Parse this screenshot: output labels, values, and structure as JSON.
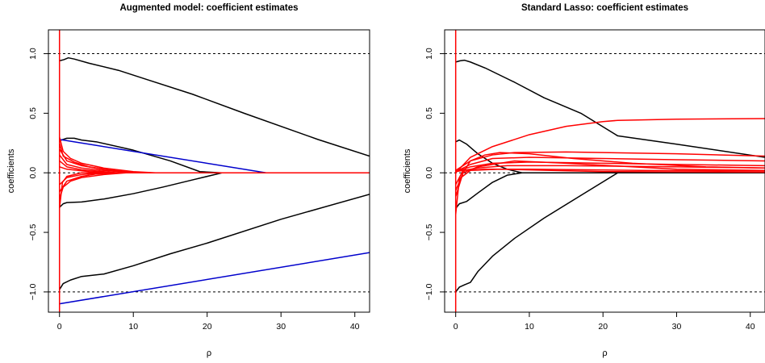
{
  "chart_data": [
    {
      "type": "line",
      "title": "Augmented model: coefficient estimates",
      "xlabel": "ρ",
      "ylabel": "coefficients",
      "xlim": [
        -1.5,
        42
      ],
      "ylim": [
        -1.17,
        1.2
      ],
      "xticks": [
        0,
        10,
        20,
        30,
        40
      ],
      "yticks": [
        -1.0,
        -0.5,
        0.0,
        0.5,
        1.0
      ],
      "ytick_labels": [
        "−1.0",
        "−0.5",
        "0.0",
        "0.5",
        "1.0"
      ],
      "reference_lines": [
        1.0,
        0.0,
        -1.0
      ],
      "colors": {
        "black": "#000000",
        "red": "#ff0000",
        "blue": "#0000cc"
      },
      "series": [
        {
          "color": "black",
          "points": [
            [
              0,
              0.94
            ],
            [
              0.6,
              0.95
            ],
            [
              1.2,
              0.965
            ],
            [
              2,
              0.955
            ],
            [
              4,
              0.92
            ],
            [
              8,
              0.86
            ],
            [
              12,
              0.78
            ],
            [
              18,
              0.66
            ],
            [
              25,
              0.5
            ],
            [
              35,
              0.28
            ],
            [
              42,
              0.14
            ]
          ]
        },
        {
          "color": "black",
          "points": [
            [
              0,
              0.27
            ],
            [
              1,
              0.29
            ],
            [
              2,
              0.29
            ],
            [
              3,
              0.275
            ],
            [
              5,
              0.26
            ],
            [
              10,
              0.19
            ],
            [
              15,
              0.1
            ],
            [
              19,
              0.01
            ],
            [
              22,
              0.0
            ],
            [
              42,
              0.0
            ]
          ]
        },
        {
          "color": "black",
          "points": [
            [
              0,
              -0.29
            ],
            [
              0.5,
              -0.26
            ],
            [
              1,
              -0.25
            ],
            [
              3,
              -0.245
            ],
            [
              6,
              -0.22
            ],
            [
              10,
              -0.175
            ],
            [
              14,
              -0.12
            ],
            [
              18,
              -0.06
            ],
            [
              22,
              0.0
            ],
            [
              42,
              0.0
            ]
          ]
        },
        {
          "color": "black",
          "points": [
            [
              0,
              -0.98
            ],
            [
              0.5,
              -0.93
            ],
            [
              1.5,
              -0.9
            ],
            [
              3,
              -0.87
            ],
            [
              6,
              -0.85
            ],
            [
              10,
              -0.78
            ],
            [
              15,
              -0.68
            ],
            [
              20,
              -0.59
            ],
            [
              30,
              -0.39
            ],
            [
              42,
              -0.18
            ]
          ]
        },
        {
          "color": "blue",
          "points": [
            [
              0,
              0.28
            ],
            [
              28,
              0.0
            ],
            [
              42,
              0.0
            ]
          ]
        },
        {
          "color": "blue",
          "points": [
            [
              0,
              -1.1
            ],
            [
              42,
              -0.67
            ]
          ]
        },
        {
          "color": "red",
          "points": [
            [
              0,
              0.3
            ],
            [
              0.5,
              0.18
            ],
            [
              1.5,
              0.12
            ],
            [
              3,
              0.08
            ],
            [
              6,
              0.04
            ],
            [
              10,
              0.01
            ],
            [
              13,
              0.0
            ],
            [
              42,
              0.0
            ]
          ]
        },
        {
          "color": "red",
          "points": [
            [
              0,
              0.25
            ],
            [
              0.5,
              0.14
            ],
            [
              2,
              0.09
            ],
            [
              4,
              0.05
            ],
            [
              7,
              0.02
            ],
            [
              11,
              0.0
            ],
            [
              42,
              0.0
            ]
          ]
        },
        {
          "color": "red",
          "points": [
            [
              0,
              0.2
            ],
            [
              1,
              0.1
            ],
            [
              3,
              0.06
            ],
            [
              6,
              0.03
            ],
            [
              9,
              0.01
            ],
            [
              12,
              0.0
            ],
            [
              42,
              0.0
            ]
          ]
        },
        {
          "color": "red",
          "points": [
            [
              0,
              0.15
            ],
            [
              1,
              0.07
            ],
            [
              3,
              0.04
            ],
            [
              6,
              0.02
            ],
            [
              10,
              0.0
            ],
            [
              42,
              0.0
            ]
          ]
        },
        {
          "color": "red",
          "points": [
            [
              0,
              0.1
            ],
            [
              1,
              0.05
            ],
            [
              3,
              0.025
            ],
            [
              8,
              0.0
            ],
            [
              42,
              0.0
            ]
          ]
        },
        {
          "color": "red",
          "points": [
            [
              0,
              -0.22
            ],
            [
              0.5,
              -0.12
            ],
            [
              1.5,
              -0.07
            ],
            [
              3,
              -0.04
            ],
            [
              6,
              -0.015
            ],
            [
              9,
              0.0
            ],
            [
              42,
              0.0
            ]
          ]
        },
        {
          "color": "red",
          "points": [
            [
              0,
              -0.16
            ],
            [
              1,
              -0.07
            ],
            [
              3,
              -0.03
            ],
            [
              5,
              -0.01
            ],
            [
              8,
              0.0
            ],
            [
              42,
              0.0
            ]
          ]
        },
        {
          "color": "red",
          "points": [
            [
              0,
              -0.1
            ],
            [
              1,
              -0.04
            ],
            [
              3,
              -0.015
            ],
            [
              6,
              0.0
            ],
            [
              42,
              0.0
            ]
          ]
        },
        {
          "color": "red",
          "points": [
            [
              0,
              -0.3
            ],
            [
              0.4,
              -0.08
            ],
            [
              1,
              -0.03
            ],
            [
              3,
              0.0
            ],
            [
              42,
              0.0
            ]
          ]
        },
        {
          "color": "red",
          "points": [
            [
              0,
              0.05
            ],
            [
              1,
              0.03
            ],
            [
              4,
              0.01
            ],
            [
              7,
              0.0
            ],
            [
              42,
              0.0
            ]
          ]
        },
        {
          "color": "red",
          "points": [
            [
              0,
              -1.17
            ],
            [
              0,
              1.2
            ]
          ]
        }
      ]
    },
    {
      "type": "line",
      "title": "Standard Lasso: coefficient estimates",
      "xlabel": "ρ",
      "ylabel": "coefficients",
      "xlim": [
        -1.5,
        42
      ],
      "ylim": [
        -1.17,
        1.2
      ],
      "xticks": [
        0,
        10,
        20,
        30,
        40
      ],
      "yticks": [
        -1.0,
        -0.5,
        0.0,
        0.5,
        1.0
      ],
      "ytick_labels": [
        "−1.0",
        "−0.5",
        "0.0",
        "0.5",
        "1.0"
      ],
      "reference_lines": [
        1.0,
        0.0,
        -1.0
      ],
      "colors": {
        "black": "#000000",
        "red": "#ff0000"
      },
      "series": [
        {
          "color": "black",
          "points": [
            [
              0,
              0.93
            ],
            [
              0.6,
              0.94
            ],
            [
              1.2,
              0.945
            ],
            [
              2,
              0.93
            ],
            [
              4,
              0.88
            ],
            [
              8,
              0.76
            ],
            [
              12,
              0.63
            ],
            [
              17,
              0.5
            ],
            [
              22,
              0.31
            ],
            [
              30,
              0.24
            ],
            [
              42,
              0.13
            ]
          ]
        },
        {
          "color": "black",
          "points": [
            [
              0,
              0.26
            ],
            [
              0.5,
              0.275
            ],
            [
              1.5,
              0.24
            ],
            [
              3,
              0.16
            ],
            [
              5,
              0.08
            ],
            [
              7,
              0.03
            ],
            [
              9,
              0.0
            ],
            [
              42,
              0.0
            ]
          ]
        },
        {
          "color": "black",
          "points": [
            [
              0,
              -0.3
            ],
            [
              0.5,
              -0.26
            ],
            [
              1.5,
              -0.24
            ],
            [
              3,
              -0.17
            ],
            [
              5,
              -0.08
            ],
            [
              7,
              -0.02
            ],
            [
              9,
              0.0
            ],
            [
              42,
              0.0
            ]
          ]
        },
        {
          "color": "black",
          "points": [
            [
              0,
              -1.0
            ],
            [
              0.5,
              -0.96
            ],
            [
              1.2,
              -0.94
            ],
            [
              2,
              -0.92
            ],
            [
              3,
              -0.83
            ],
            [
              5,
              -0.7
            ],
            [
              8,
              -0.55
            ],
            [
              12,
              -0.38
            ],
            [
              17,
              -0.19
            ],
            [
              22,
              0.0
            ],
            [
              42,
              0.0
            ]
          ]
        },
        {
          "color": "red",
          "points": [
            [
              0,
              0.0
            ],
            [
              2,
              0.13
            ],
            [
              5,
              0.22
            ],
            [
              10,
              0.32
            ],
            [
              15,
              0.39
            ],
            [
              20,
              0.43
            ],
            [
              22,
              0.44
            ],
            [
              30,
              0.45
            ],
            [
              42,
              0.455
            ]
          ]
        },
        {
          "color": "red",
          "points": [
            [
              0,
              0.02
            ],
            [
              2,
              0.1
            ],
            [
              5,
              0.15
            ],
            [
              8,
              0.17
            ],
            [
              15,
              0.175
            ],
            [
              30,
              0.16
            ],
            [
              42,
              0.14
            ]
          ]
        },
        {
          "color": "red",
          "points": [
            [
              0,
              0.01
            ],
            [
              2,
              0.07
            ],
            [
              5,
              0.12
            ],
            [
              10,
              0.13
            ],
            [
              20,
              0.12
            ],
            [
              30,
              0.11
            ],
            [
              42,
              0.1
            ]
          ]
        },
        {
          "color": "red",
          "points": [
            [
              0,
              0.01
            ],
            [
              2,
              0.05
            ],
            [
              5,
              0.08
            ],
            [
              10,
              0.09
            ],
            [
              20,
              0.08
            ],
            [
              30,
              0.07
            ],
            [
              42,
              0.06
            ]
          ]
        },
        {
          "color": "red",
          "points": [
            [
              0,
              0.01
            ],
            [
              3,
              0.04
            ],
            [
              7,
              0.06
            ],
            [
              15,
              0.06
            ],
            [
              30,
              0.05
            ],
            [
              42,
              0.04
            ]
          ]
        },
        {
          "color": "red",
          "points": [
            [
              0,
              -0.1
            ],
            [
              1,
              0.02
            ],
            [
              4,
              0.03
            ],
            [
              10,
              0.03
            ],
            [
              25,
              0.02
            ],
            [
              42,
              0.015
            ]
          ]
        },
        {
          "color": "red",
          "points": [
            [
              0,
              -0.2
            ],
            [
              1,
              0.0
            ],
            [
              2,
              0.1
            ],
            [
              4,
              0.15
            ],
            [
              6,
              0.17
            ],
            [
              10,
              0.16
            ],
            [
              16,
              0.12
            ],
            [
              24,
              0.08
            ],
            [
              34,
              0.05
            ],
            [
              42,
              0.04
            ]
          ]
        },
        {
          "color": "red",
          "points": [
            [
              0,
              -0.15
            ],
            [
              1,
              0.0
            ],
            [
              3,
              0.05
            ],
            [
              8,
              0.1
            ],
            [
              15,
              0.08
            ],
            [
              30,
              0.03
            ],
            [
              42,
              0.02
            ]
          ]
        },
        {
          "color": "red",
          "points": [
            [
              0,
              -0.35
            ],
            [
              0.5,
              -0.05
            ],
            [
              2,
              0.02
            ],
            [
              6,
              0.03
            ],
            [
              20,
              0.01
            ],
            [
              42,
              0.005
            ]
          ]
        },
        {
          "color": "red",
          "points": [
            [
              0,
              -1.17
            ],
            [
              0,
              1.2
            ]
          ]
        }
      ]
    }
  ]
}
